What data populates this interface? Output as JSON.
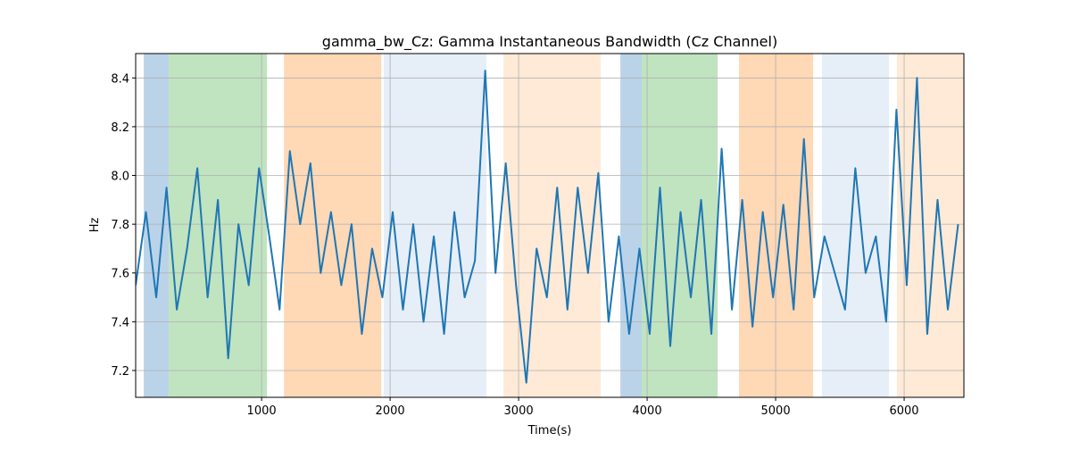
{
  "chart_data": {
    "type": "line",
    "title": "gamma_bw_Cz: Gamma Instantaneous Bandwidth (Cz Channel)",
    "xlabel": "Time(s)",
    "ylabel": "Hz",
    "xlim": [
      20,
      6465
    ],
    "ylim": [
      7.09,
      8.5
    ],
    "xticks": [
      1000,
      2000,
      3000,
      4000,
      5000,
      6000
    ],
    "yticks": [
      7.2,
      7.4,
      7.6,
      7.8,
      {
        "value": 8,
        "label": "8.0"
      },
      8.2,
      8.4
    ],
    "grid": true,
    "spans": [
      {
        "x0": 83,
        "x1": 278,
        "color": "#bad3e9"
      },
      {
        "x0": 278,
        "x1": 1042,
        "color": "#c0e3c0"
      },
      {
        "x0": 1174,
        "x1": 1931,
        "color": "#ffd8b6"
      },
      {
        "x0": 1951,
        "x1": 2750,
        "color": "#e6eef8"
      },
      {
        "x0": 2882,
        "x1": 3639,
        "color": "#feead7"
      },
      {
        "x0": 3792,
        "x1": 3958,
        "color": "#bad3e9"
      },
      {
        "x0": 3958,
        "x1": 4549,
        "color": "#c0e3c0"
      },
      {
        "x0": 4715,
        "x1": 5292,
        "color": "#ffd8b6"
      },
      {
        "x0": 5361,
        "x1": 5882,
        "color": "#e6eef8"
      },
      {
        "x0": 5944,
        "x1": 6465,
        "color": "#feead7"
      }
    ],
    "series": [
      {
        "name": "gamma_bw_Cz",
        "color": "#1f77b4",
        "x": [
          20,
          100,
          180,
          260,
          340,
          420,
          500,
          580,
          660,
          740,
          820,
          900,
          980,
          1060,
          1140,
          1220,
          1300,
          1380,
          1460,
          1540,
          1620,
          1700,
          1780,
          1860,
          1940,
          2020,
          2100,
          2180,
          2260,
          2340,
          2420,
          2500,
          2580,
          2660,
          2740,
          2820,
          2900,
          2980,
          3060,
          3140,
          3220,
          3300,
          3380,
          3460,
          3540,
          3620,
          3700,
          3780,
          3860,
          3940,
          4020,
          4100,
          4180,
          4260,
          4340,
          4420,
          4500,
          4580,
          4660,
          4740,
          4820,
          4900,
          4980,
          5060,
          5140,
          5220,
          5300,
          5380,
          5460,
          5540,
          5620,
          5700,
          5780,
          5860,
          5940,
          6020,
          6100,
          6180,
          6260,
          6340,
          6420
        ],
        "values": [
          7.55,
          7.85,
          7.5,
          7.95,
          7.45,
          7.7,
          8.03,
          7.5,
          7.9,
          7.25,
          7.8,
          7.55,
          8.03,
          7.75,
          7.45,
          8.1,
          7.8,
          8.05,
          7.6,
          7.85,
          7.55,
          7.8,
          7.35,
          7.7,
          7.5,
          7.85,
          7.45,
          7.8,
          7.4,
          7.75,
          7.35,
          7.85,
          7.5,
          7.65,
          8.43,
          7.6,
          8.05,
          7.55,
          7.15,
          7.7,
          7.5,
          7.95,
          7.45,
          7.95,
          7.6,
          8.01,
          7.4,
          7.75,
          7.35,
          7.7,
          7.35,
          7.95,
          7.3,
          7.85,
          7.5,
          7.9,
          7.35,
          8.11,
          7.45,
          7.9,
          7.38,
          7.85,
          7.5,
          7.88,
          7.45,
          8.15,
          7.5,
          7.75,
          7.6,
          7.45,
          8.03,
          7.6,
          7.75,
          7.4,
          8.27,
          7.55,
          8.4,
          7.35,
          7.9,
          7.45,
          7.8
        ]
      }
    ]
  }
}
